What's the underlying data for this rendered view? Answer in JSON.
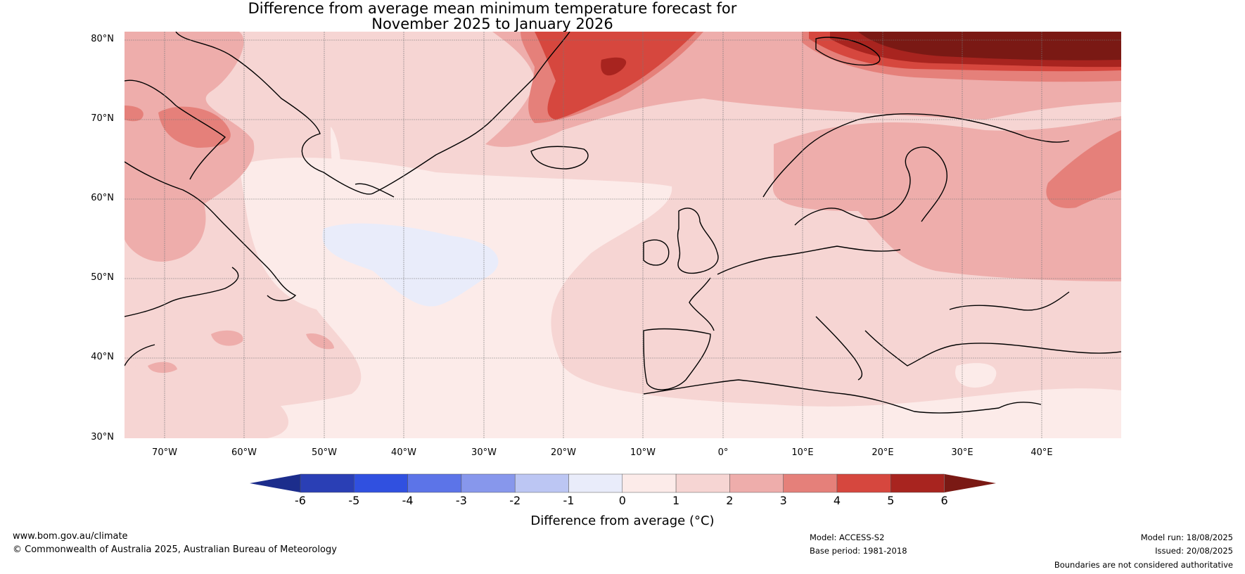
{
  "title": {
    "line1": "Difference from average mean minimum temperature forecast for",
    "line2": "November 2025 to January 2026"
  },
  "map": {
    "lat_labels": [
      "80°N",
      "70°N",
      "60°N",
      "50°N",
      "40°N",
      "30°N"
    ],
    "lon_labels": [
      "70°W",
      "60°W",
      "50°W",
      "40°W",
      "30°W",
      "20°W",
      "10°W",
      "0°",
      "10°E",
      "20°E",
      "30°E",
      "40°E"
    ],
    "lat_range": [
      30,
      81
    ],
    "lon_range": [
      -75,
      50
    ]
  },
  "colorbar": {
    "ticks": [
      "-6",
      "-5",
      "-4",
      "-3",
      "-2",
      "-1",
      "0",
      "1",
      "2",
      "3",
      "4",
      "5",
      "6"
    ],
    "colors": [
      "#1c2d8c",
      "#2a3fb5",
      "#3050e0",
      "#5c74e8",
      "#8797ec",
      "#bcc6f3",
      "#e9ecfa",
      "#fcebe9",
      "#f6d5d3",
      "#eeadab",
      "#e5807a",
      "#d6473e",
      "#a8241f",
      "#7a1914"
    ],
    "title": "Difference from average (°C)"
  },
  "footer": {
    "website": "www.bom.gov.au/climate",
    "copyright": "© Commonwealth of Australia 2025, Australian Bureau of Meteorology",
    "model": "Model: ACCESS-S2",
    "base_period": "Base period: 1981-2018",
    "model_run": "Model run: 18/08/2025",
    "issued": "Issued: 20/08/2025",
    "disclaimer": "Boundaries are not considered authoritative"
  }
}
